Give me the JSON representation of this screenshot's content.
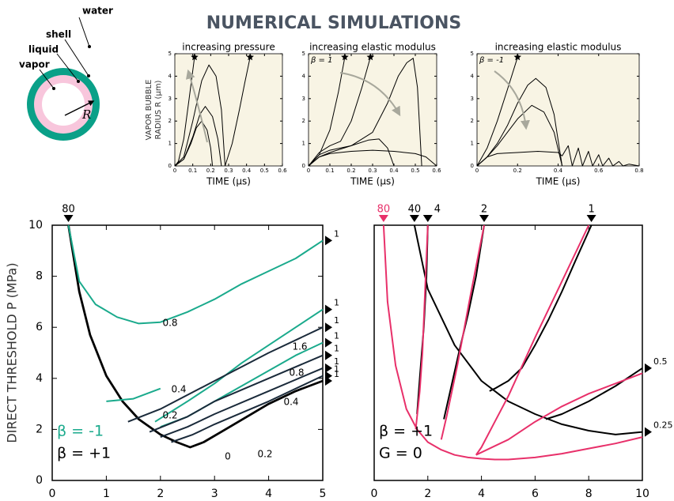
{
  "header": {
    "title": "NUMERICAL SIMULATIONS"
  },
  "diagram": {
    "labels": [
      "water",
      "shell",
      "liquid",
      "vapor"
    ],
    "radius": "R"
  },
  "chart_data": [
    {
      "type": "line",
      "title": "increasing pressure",
      "xlabel": "TIME (μs)",
      "ylabel": [
        "VAPOR BUBBLE",
        "RADIUS R (μm)"
      ],
      "background": "#f8f4e4",
      "xlim": [
        0,
        0.6
      ],
      "xticks": [
        0,
        0.1,
        0.2,
        0.3,
        0.4,
        0.5,
        0.6
      ],
      "ylim": [
        0,
        5
      ],
      "yticks": [
        0,
        1,
        2,
        3,
        4,
        5
      ],
      "series": [
        {
          "color": "#000000",
          "x": [
            0,
            0.02,
            0.05,
            0.08,
            0.11
          ],
          "values": [
            0,
            0.2,
            1.2,
            3,
            4.85
          ]
        },
        {
          "color": "#000000",
          "x": [
            0,
            0.05,
            0.1,
            0.15,
            0.19,
            0.23,
            0.26,
            0.28
          ],
          "values": [
            0,
            0.4,
            2,
            3.8,
            4.5,
            4,
            2.5,
            0
          ]
        },
        {
          "color": "#000000",
          "x": [
            0,
            0.05,
            0.1,
            0.14,
            0.17,
            0.21,
            0.24,
            0.26
          ],
          "values": [
            0,
            0.3,
            1.3,
            2.3,
            2.65,
            2.2,
            1.2,
            0
          ]
        },
        {
          "color": "#000000",
          "x": [
            0,
            0.05,
            0.09,
            0.12,
            0.15,
            0.18,
            0.2,
            0.21
          ],
          "values": [
            0,
            0.3,
            1,
            1.7,
            2,
            1.6,
            0.8,
            0
          ]
        },
        {
          "color": "#000000",
          "x": [
            0.28,
            0.32,
            0.36,
            0.39,
            0.42
          ],
          "values": [
            0,
            1,
            2.5,
            3.7,
            4.85
          ]
        }
      ],
      "stars": {
        "x": [
          0.11,
          0.42
        ],
        "values": [
          4.85,
          4.85
        ]
      }
    },
    {
      "type": "line",
      "title": "increasing elastic modulus",
      "annotation": "β = 1",
      "xlabel": "TIME (μs)",
      "background": "#f8f4e4",
      "xlim": [
        0,
        0.6
      ],
      "xticks": [
        0,
        0.1,
        0.2,
        0.3,
        0.4,
        0.5,
        0.6
      ],
      "ylim": [
        0,
        5
      ],
      "yticks": [
        0,
        1,
        2,
        3,
        4,
        5
      ],
      "series": [
        {
          "color": "#000000",
          "x": [
            0,
            0.05,
            0.1,
            0.14,
            0.17
          ],
          "values": [
            0,
            0.5,
            1.6,
            3.3,
            4.85
          ]
        },
        {
          "color": "#000000",
          "x": [
            0,
            0.05,
            0.1,
            0.15,
            0.2,
            0.25,
            0.29
          ],
          "values": [
            0,
            0.6,
            0.9,
            1.1,
            2,
            3.5,
            4.85
          ]
        },
        {
          "color": "#000000",
          "x": [
            0,
            0.05,
            0.1,
            0.2,
            0.3,
            0.37,
            0.42,
            0.46,
            0.49,
            0.51,
            0.53
          ],
          "values": [
            0,
            0.5,
            0.7,
            0.9,
            1.5,
            2.8,
            4,
            4.6,
            4.8,
            3.5,
            0
          ]
        },
        {
          "color": "#000000",
          "x": [
            0,
            0.05,
            0.1,
            0.2,
            0.28,
            0.33,
            0.37,
            0.4
          ],
          "values": [
            0,
            0.4,
            0.6,
            0.9,
            1.15,
            1.2,
            0.8,
            0
          ]
        },
        {
          "color": "#000000",
          "x": [
            0,
            0.05,
            0.1,
            0.2,
            0.3,
            0.4,
            0.5,
            0.55,
            0.6
          ],
          "values": [
            0,
            0.4,
            0.55,
            0.65,
            0.7,
            0.65,
            0.55,
            0.4,
            0
          ]
        }
      ],
      "stars": {
        "x": [
          0.17,
          0.29
        ],
        "values": [
          4.85,
          4.85
        ]
      }
    },
    {
      "type": "line",
      "title": "increasing elastic modulus",
      "annotation": "β = -1",
      "xlabel": "TIME (μs)",
      "background": "#f8f4e4",
      "xlim": [
        0,
        0.8
      ],
      "xticks": [
        0,
        0.2,
        0.4,
        0.6,
        0.8
      ],
      "ylim": [
        0,
        5
      ],
      "yticks": [
        0,
        1,
        2,
        3,
        4,
        5
      ],
      "series": [
        {
          "color": "#000000",
          "x": [
            0,
            0.05,
            0.1,
            0.15,
            0.2
          ],
          "values": [
            0,
            0.8,
            2,
            3.4,
            4.85
          ]
        },
        {
          "color": "#000000",
          "x": [
            0,
            0.05,
            0.1,
            0.15,
            0.2,
            0.25,
            0.29,
            0.34,
            0.38,
            0.42
          ],
          "values": [
            0,
            0.4,
            1,
            1.8,
            2.8,
            3.6,
            3.9,
            3.5,
            2.3,
            0
          ]
        },
        {
          "color": "#000000",
          "x": [
            0,
            0.05,
            0.1,
            0.15,
            0.2,
            0.27,
            0.33,
            0.38,
            0.42
          ],
          "values": [
            0,
            0.4,
            0.9,
            1.5,
            2.1,
            2.7,
            2.4,
            1.5,
            0
          ]
        },
        {
          "color": "#000000",
          "x": [
            0,
            0.05,
            0.1,
            0.2,
            0.3,
            0.4,
            0.42,
            0.45,
            0.47,
            0.5,
            0.52,
            0.55,
            0.57,
            0.6,
            0.62,
            0.65,
            0.67,
            0.7,
            0.72,
            0.75,
            0.8
          ],
          "values": [
            0,
            0.4,
            0.55,
            0.6,
            0.65,
            0.6,
            0.45,
            0.9,
            0,
            0.8,
            0,
            0.65,
            0,
            0.5,
            0,
            0.35,
            0,
            0.2,
            0,
            0.08,
            0
          ]
        }
      ],
      "stars": {
        "x": [
          0.2
        ],
        "values": [
          4.85
        ]
      }
    },
    {
      "type": "line",
      "ylabel": "DIRECT THRESHOLD P (MPa)",
      "xlim": [
        0,
        5
      ],
      "xticks": [
        0,
        1,
        2,
        3,
        4,
        5
      ],
      "ylim": [
        0,
        10
      ],
      "yticks": [
        0,
        2,
        4,
        6,
        8,
        10
      ],
      "legend": [
        {
          "text": "β = -1",
          "color": "#1aaa8c"
        },
        {
          "text": "β = +1",
          "color": "#000000"
        }
      ],
      "series": [
        {
          "color": "#000000",
          "label": "0",
          "start_label": "80",
          "end_label": "1",
          "x": [
            0.3,
            0.5,
            0.7,
            1,
            1.3,
            1.6,
            2,
            2.3,
            2.55,
            2.8,
            3.2,
            3.6,
            4,
            4.5,
            5
          ],
          "values": [
            10,
            7.4,
            5.7,
            4.1,
            3.1,
            2.4,
            1.8,
            1.5,
            1.3,
            1.5,
            2,
            2.5,
            3,
            3.5,
            3.9
          ]
        },
        {
          "color": "#1aaa8c",
          "label": "0.8",
          "end_label": "1",
          "x": [
            0.3,
            0.5,
            0.8,
            1.2,
            1.6,
            2,
            2.5,
            3,
            3.5,
            4,
            4.5,
            5
          ],
          "values": [
            10,
            7.8,
            6.9,
            6.4,
            6.15,
            6.2,
            6.6,
            7.1,
            7.7,
            8.2,
            8.7,
            9.4
          ]
        },
        {
          "color": "#1aaa8c",
          "label": "0.4",
          "x": [
            1,
            1.5,
            2
          ],
          "values": [
            3.1,
            3.2,
            3.6
          ]
        },
        {
          "color": "#1aaa8c",
          "end_label": "1",
          "x": [
            1.9,
            2.5,
            3,
            3.5,
            4,
            4.5,
            5
          ],
          "values": [
            2.3,
            3.1,
            3.8,
            4.6,
            5.3,
            6,
            6.7
          ]
        },
        {
          "color": "#1aaa8c",
          "label": "0.2",
          "end_label": "1",
          "x": [
            2,
            2.5,
            3,
            3.5,
            4,
            4.5,
            5
          ],
          "values": [
            2.1,
            2.5,
            3.1,
            3.7,
            4.3,
            4.9,
            5.4
          ]
        },
        {
          "color": "#1a2a3a",
          "label": "1.6",
          "end_label": "1",
          "x": [
            1.4,
            2,
            3,
            4,
            5
          ],
          "values": [
            2.3,
            2.8,
            3.9,
            5,
            6
          ]
        },
        {
          "color": "#1a2a3a",
          "label": "0.8",
          "end_label": "1",
          "x": [
            1.8,
            2.5,
            3,
            4,
            5
          ],
          "values": [
            1.9,
            2.5,
            3.1,
            4,
            4.9
          ]
        },
        {
          "color": "#1a2a3a",
          "label": "0.4",
          "end_label": "1",
          "x": [
            2,
            2.5,
            3,
            4,
            5
          ],
          "values": [
            1.7,
            2.1,
            2.6,
            3.5,
            4.4
          ]
        },
        {
          "color": "#1a2a3a",
          "label": "0.2",
          "end_label": "1",
          "x": [
            2.2,
            2.6,
            3,
            4,
            5
          ],
          "values": [
            1.5,
            1.8,
            2.2,
            3.1,
            4.1
          ]
        }
      ]
    },
    {
      "type": "line",
      "xlim": [
        0,
        10
      ],
      "xticks": [
        0,
        2,
        4,
        6,
        8,
        10
      ],
      "ylim": [
        0,
        10
      ],
      "legend": [
        {
          "text": "β = +1",
          "color": "#000000"
        },
        {
          "text": "G = 0",
          "color": "#000000"
        }
      ],
      "series": [
        {
          "color": "#000000",
          "start_label": "40",
          "end_label": "0.25",
          "x": [
            1.5,
            2,
            3,
            4,
            5,
            6,
            6.5,
            7,
            8,
            9,
            10
          ],
          "values": [
            10,
            7.5,
            5.3,
            3.9,
            3.1,
            2.6,
            2.4,
            2.2,
            1.95,
            1.8,
            1.9
          ]
        },
        {
          "color": "#000000",
          "start_label": "4",
          "x": [
            2,
            1.95,
            1.85,
            1.7,
            1.6
          ],
          "values": [
            10,
            8,
            6,
            4,
            2.6
          ]
        },
        {
          "color": "#000000",
          "start_label": "2",
          "x": [
            4.1,
            3.8,
            3.5,
            3.2,
            2.9,
            2.6
          ],
          "values": [
            10,
            8,
            6.5,
            5.2,
            3.8,
            2.4
          ]
        },
        {
          "color": "#000000",
          "start_label": "1",
          "x": [
            8.1,
            7.5,
            7,
            6.5,
            6,
            5.5,
            5,
            4.5,
            4.3
          ],
          "values": [
            10,
            8.6,
            7.4,
            6.3,
            5.3,
            4.4,
            3.9,
            3.6,
            3.5
          ]
        },
        {
          "color": "#000000",
          "end_label": "0.5",
          "x": [
            6.4,
            7,
            8,
            9,
            10
          ],
          "values": [
            2.4,
            2.6,
            3.1,
            3.7,
            4.4
          ]
        },
        {
          "color": "#e8306a",
          "start_label": "80",
          "x": [
            0.35,
            0.5,
            0.8,
            1.2,
            1.6,
            2,
            2.5,
            3,
            3.5,
            4,
            4.5,
            5,
            6,
            7,
            8,
            9,
            10
          ],
          "values": [
            10,
            7,
            4.5,
            2.8,
            2,
            1.5,
            1.2,
            1,
            0.9,
            0.85,
            0.82,
            0.82,
            0.9,
            1.05,
            1.25,
            1.45,
            1.7
          ]
        },
        {
          "color": "#e8306a",
          "x": [
            2,
            1.9,
            1.8,
            1.7,
            1.6,
            1.55
          ],
          "values": [
            10,
            7.5,
            5,
            3.5,
            2.5,
            2
          ]
        },
        {
          "color": "#e8306a",
          "x": [
            4.1,
            3.6,
            3.1,
            2.7,
            2.5
          ],
          "values": [
            10,
            7.3,
            4.5,
            2.5,
            1.6
          ]
        },
        {
          "color": "#e8306a",
          "x": [
            8,
            7,
            6,
            5,
            4.5,
            4,
            3.8
          ],
          "values": [
            10,
            7.8,
            5.6,
            3.3,
            2.3,
            1.3,
            1
          ]
        },
        {
          "color": "#e8306a",
          "x": [
            3.8,
            5,
            6,
            7,
            8,
            9,
            10
          ],
          "values": [
            1,
            1.6,
            2.3,
            2.9,
            3.4,
            3.8,
            4.2
          ]
        }
      ]
    }
  ]
}
